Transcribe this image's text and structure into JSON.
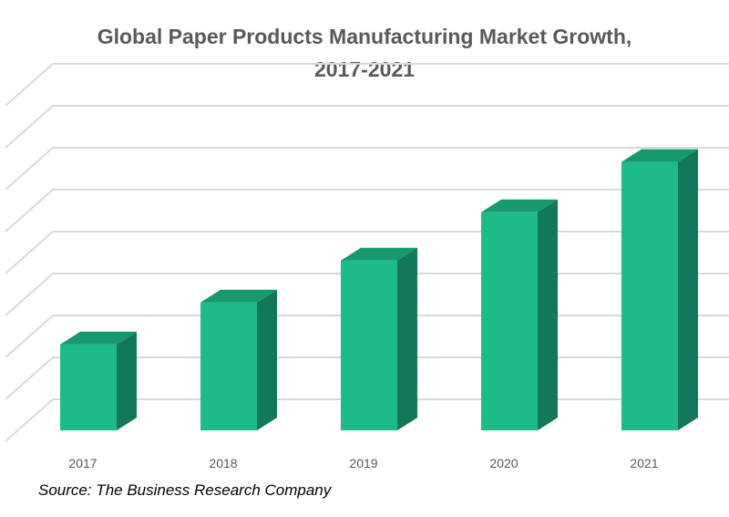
{
  "chart_data": {
    "type": "bar",
    "title_lines": [
      "Global Paper Products Manufacturing Market Growth,",
      "2017-2021"
    ],
    "categories": [
      "2017",
      "2018",
      "2019",
      "2020",
      "2021"
    ],
    "values": [
      20.5,
      30.5,
      40.5,
      52,
      64
    ],
    "ylim": [
      0,
      80
    ],
    "grid": true,
    "legend": "none",
    "colors": {
      "front": "#1ebb8a",
      "side": "#13775a",
      "top": "#17996f",
      "grid": "#d9d9d9"
    }
  },
  "source": "Source: The Business Research Company"
}
